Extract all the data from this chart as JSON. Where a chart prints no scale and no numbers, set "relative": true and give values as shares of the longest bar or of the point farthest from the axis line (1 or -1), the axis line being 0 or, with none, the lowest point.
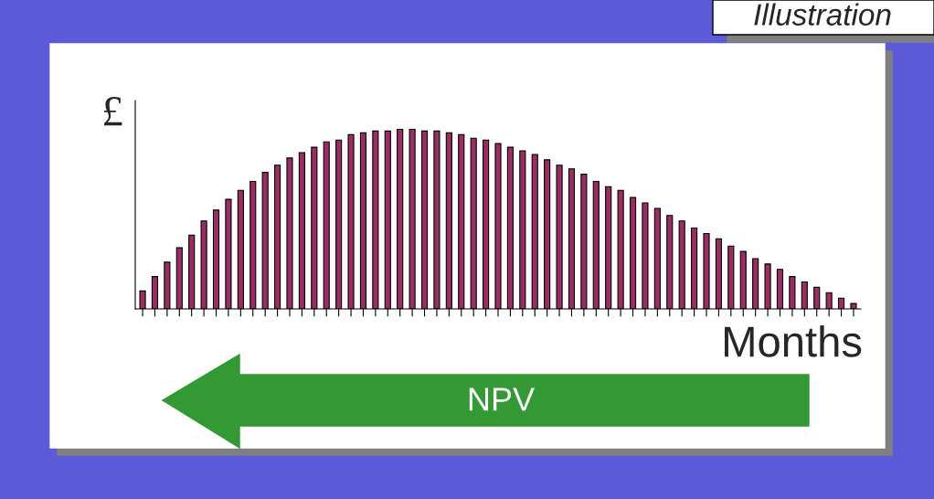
{
  "chart_data": {
    "type": "bar",
    "title": "Illustration",
    "xlabel": "Months",
    "ylabel": "£",
    "relative": true,
    "color": "#9b2d62",
    "categories": [
      null,
      null,
      null,
      null,
      null,
      null,
      null,
      null,
      null,
      null,
      null,
      null,
      null,
      null,
      null,
      null,
      null,
      null,
      null,
      null,
      null,
      null,
      null,
      null,
      null,
      null,
      null,
      null,
      null,
      null,
      null,
      null,
      null,
      null,
      null,
      null,
      null,
      null,
      null,
      null,
      null,
      null,
      null,
      null,
      null,
      null,
      null,
      null,
      null,
      null,
      null,
      null,
      null,
      null,
      null,
      null,
      null,
      null,
      null
    ],
    "values": [
      0.1,
      0.18,
      0.26,
      0.34,
      0.41,
      0.49,
      0.55,
      0.61,
      0.66,
      0.71,
      0.76,
      0.8,
      0.84,
      0.87,
      0.9,
      0.93,
      0.94,
      0.97,
      0.98,
      0.99,
      0.99,
      1,
      1,
      0.99,
      0.99,
      0.98,
      0.97,
      0.95,
      0.94,
      0.92,
      0.9,
      0.88,
      0.86,
      0.83,
      0.8,
      0.78,
      0.75,
      0.71,
      0.68,
      0.66,
      0.62,
      0.59,
      0.56,
      0.52,
      0.49,
      0.45,
      0.42,
      0.39,
      0.35,
      0.32,
      0.28,
      0.25,
      0.22,
      0.18,
      0.15,
      0.12,
      0.09,
      0.06,
      0.03
    ],
    "annotations": [
      "NPV"
    ]
  }
}
